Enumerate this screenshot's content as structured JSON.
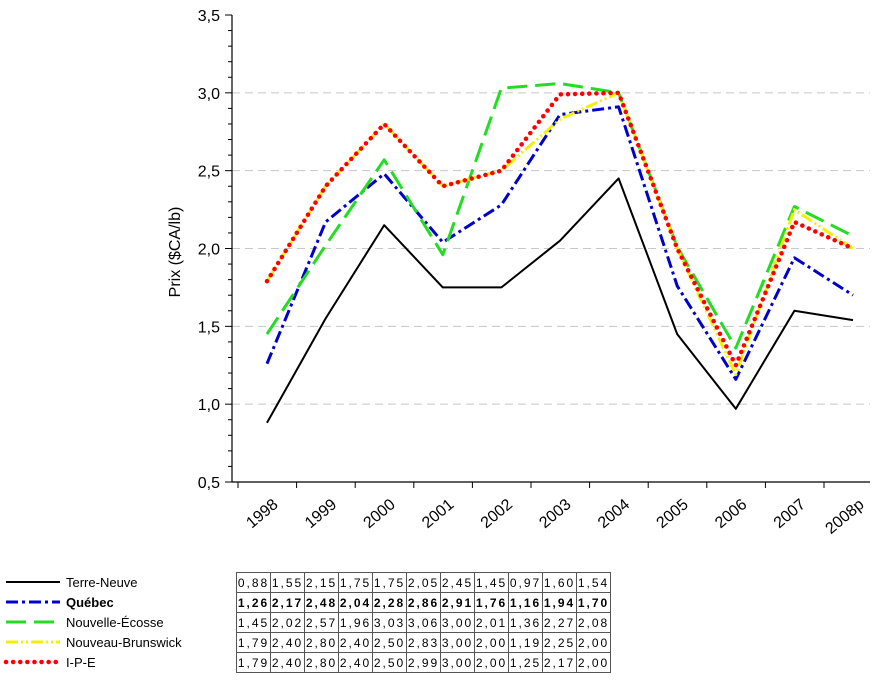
{
  "chart_data": {
    "type": "line",
    "ylabel": "Prix ($CA/lb)",
    "xlabel": "",
    "ylim": [
      0.5,
      3.5
    ],
    "yticks": [
      "0,5",
      "1,0",
      "1,5",
      "2,0",
      "2,5",
      "3,0",
      "3,5"
    ],
    "grid": true,
    "categories": [
      "1998",
      "1999",
      "2000",
      "2001",
      "2002",
      "2003",
      "2004",
      "2005",
      "2006",
      "2007",
      "2008p"
    ],
    "series": [
      {
        "name": "Terre-Neuve",
        "values": [
          0.88,
          1.55,
          2.15,
          1.75,
          1.75,
          2.05,
          2.45,
          1.45,
          0.97,
          1.6,
          1.54
        ],
        "labels": [
          "0,88",
          "1,55",
          "2,15",
          "1,75",
          "1,75",
          "2,05",
          "2,45",
          "1,45",
          "0,97",
          "1,60",
          "1,54"
        ],
        "color": "#000000",
        "style": "solid",
        "bold": false
      },
      {
        "name": "Québec",
        "values": [
          1.26,
          2.17,
          2.48,
          2.04,
          2.28,
          2.86,
          2.91,
          1.76,
          1.16,
          1.94,
          1.7
        ],
        "labels": [
          "1,26",
          "2,17",
          "2,48",
          "2,04",
          "2,28",
          "2,86",
          "2,91",
          "1,76",
          "1,16",
          "1,94",
          "1,70"
        ],
        "color": "#0000cc",
        "style": "dashdot",
        "bold": true
      },
      {
        "name": "Nouvelle-Écosse",
        "values": [
          1.45,
          2.02,
          2.57,
          1.96,
          3.03,
          3.06,
          3.0,
          2.01,
          1.36,
          2.27,
          2.08
        ],
        "labels": [
          "1,45",
          "2,02",
          "2,57",
          "1,96",
          "3,03",
          "3,06",
          "3,00",
          "2,01",
          "1,36",
          "2,27",
          "2,08"
        ],
        "color": "#22dd22",
        "style": "dashed",
        "bold": false
      },
      {
        "name": "Nouveau-Brunswick",
        "values": [
          1.79,
          2.4,
          2.8,
          2.4,
          2.5,
          2.83,
          3.0,
          2.0,
          1.19,
          2.25,
          2.0
        ],
        "labels": [
          "1,79",
          "2,40",
          "2,80",
          "2,40",
          "2,50",
          "2,83",
          "3,00",
          "2,00",
          "1,19",
          "2,25",
          "2,00"
        ],
        "color": "#f2f200",
        "style": "dashdotdot",
        "bold": false
      },
      {
        "name": "I-P-E",
        "values": [
          1.79,
          2.4,
          2.8,
          2.4,
          2.5,
          2.99,
          3.0,
          2.0,
          1.25,
          2.17,
          2.0
        ],
        "labels": [
          "1,79",
          "2,40",
          "2,80",
          "2,40",
          "2,50",
          "2,99",
          "3,00",
          "2,00",
          "1,25",
          "2,17",
          "2,00"
        ],
        "color": "#ff0000",
        "style": "dotted",
        "bold": false
      }
    ]
  }
}
